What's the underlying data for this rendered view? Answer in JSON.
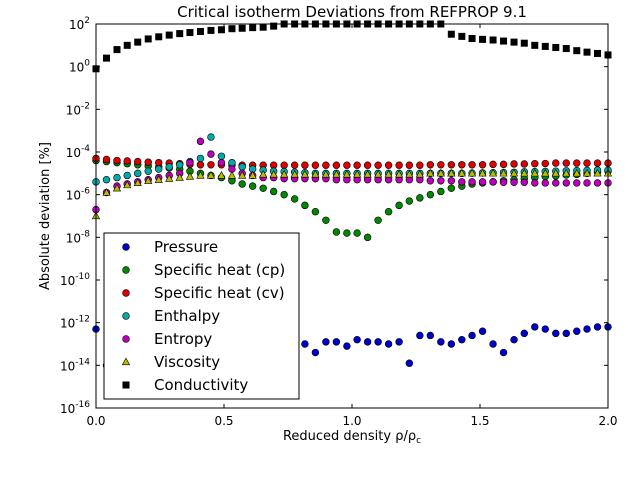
{
  "chart_data": {
    "type": "scatter",
    "title": "Critical isotherm Deviations from REFPROP 9.1",
    "xlabel": "Reduced density ρ/ρ",
    "xlabel_sub": "c",
    "ylabel": "Absolute deviation [%]",
    "xlim": [
      0,
      2
    ],
    "ylim_log10": [
      -16,
      2
    ],
    "y_scale": "log",
    "x_ticks": [
      "0.0",
      "0.5",
      "1.0",
      "1.5",
      "2.0"
    ],
    "y_ticks": [
      {
        "base": "10",
        "exp": "2"
      },
      {
        "base": "10",
        "exp": "0"
      },
      {
        "base": "10",
        "exp": "-2"
      },
      {
        "base": "10",
        "exp": "-4"
      },
      {
        "base": "10",
        "exp": "-6"
      },
      {
        "base": "10",
        "exp": "-8"
      },
      {
        "base": "10",
        "exp": "-10"
      },
      {
        "base": "10",
        "exp": "-12"
      },
      {
        "base": "10",
        "exp": "-14"
      },
      {
        "base": "10",
        "exp": "-16"
      }
    ],
    "legend_position": "lower-left",
    "x": [
      0.0,
      0.041,
      0.082,
      0.122,
      0.163,
      0.204,
      0.245,
      0.286,
      0.327,
      0.367,
      0.408,
      0.449,
      0.49,
      0.531,
      0.571,
      0.612,
      0.653,
      0.694,
      0.735,
      0.776,
      0.816,
      0.857,
      0.898,
      0.939,
      0.98,
      1.02,
      1.061,
      1.102,
      1.143,
      1.184,
      1.224,
      1.265,
      1.306,
      1.347,
      1.388,
      1.429,
      1.469,
      1.51,
      1.551,
      1.592,
      1.633,
      1.673,
      1.714,
      1.755,
      1.796,
      1.837,
      1.878,
      1.918,
      1.959,
      2.0
    ],
    "series": [
      {
        "name": "Pressure",
        "marker": "circle",
        "color": "#0000cc",
        "log10_values": [
          -12.3,
          -14.0,
          -13.5,
          -13.0,
          -12.9,
          -13.2,
          -13.5,
          -13.6,
          -13.2,
          -13.4,
          -13.6,
          -13.3,
          -13.7,
          -13.4,
          -13.5,
          -13.3,
          -13.6,
          -13.2,
          -13.4,
          -13.2,
          -13.0,
          -13.4,
          -12.9,
          -12.9,
          -13.1,
          -12.8,
          -12.9,
          -12.9,
          -13.0,
          -12.9,
          -13.9,
          -12.6,
          -12.6,
          -12.9,
          -13.0,
          -12.8,
          -12.6,
          -12.4,
          -13.0,
          -13.4,
          -12.8,
          -12.5,
          -12.2,
          -12.3,
          -12.5,
          -12.5,
          -12.4,
          -12.3,
          -12.2,
          -12.2
        ]
      },
      {
        "name": "Specific heat (cp)",
        "marker": "circle",
        "color": "#008800",
        "log10_values": [
          -4.4,
          -4.45,
          -4.5,
          -4.55,
          -4.6,
          -4.65,
          -4.7,
          -4.75,
          -4.8,
          -4.9,
          -5.0,
          -5.1,
          -5.2,
          -5.35,
          -5.5,
          -5.6,
          -5.7,
          -5.85,
          -6.0,
          -6.2,
          -6.5,
          -6.8,
          -7.2,
          -7.75,
          -7.8,
          -7.8,
          -8.0,
          -7.2,
          -6.8,
          -6.5,
          -6.3,
          -6.15,
          -6.0,
          -5.85,
          -5.7,
          -5.6,
          -5.5,
          -5.45,
          -5.4,
          -5.35,
          -5.3,
          -5.25,
          -5.2,
          -5.15,
          -5.12,
          -5.08,
          -5.05,
          -5.0,
          -4.95,
          -4.9
        ]
      },
      {
        "name": "Specific heat (cv)",
        "marker": "circle",
        "color": "#dd0000",
        "log10_values": [
          -4.3,
          -4.35,
          -4.4,
          -4.42,
          -4.45,
          -4.48,
          -4.5,
          -4.52,
          -4.55,
          -4.58,
          -4.6,
          -4.6,
          -4.6,
          -4.62,
          -4.62,
          -4.62,
          -4.62,
          -4.62,
          -4.62,
          -4.62,
          -4.62,
          -4.62,
          -4.62,
          -4.62,
          -4.62,
          -4.62,
          -4.62,
          -4.62,
          -4.62,
          -4.62,
          -4.62,
          -4.62,
          -4.6,
          -4.6,
          -4.6,
          -4.6,
          -4.6,
          -4.6,
          -4.58,
          -4.58,
          -4.56,
          -4.56,
          -4.55,
          -4.54,
          -4.52,
          -4.52,
          -4.52,
          -4.52,
          -4.52,
          -4.52
        ]
      },
      {
        "name": "Enthalpy",
        "marker": "circle",
        "color": "#00aaaa",
        "log10_values": [
          -5.4,
          -5.3,
          -5.2,
          -5.1,
          -5.0,
          -4.9,
          -4.8,
          -4.7,
          -4.6,
          -4.45,
          -4.3,
          -3.3,
          -4.2,
          -4.5,
          -4.7,
          -4.8,
          -4.85,
          -4.9,
          -4.92,
          -4.95,
          -4.97,
          -5.0,
          -5.0,
          -5.0,
          -5.0,
          -5.0,
          -5.0,
          -5.0,
          -5.0,
          -5.0,
          -5.0,
          -5.0,
          -5.0,
          -5.0,
          -5.0,
          -5.0,
          -4.99,
          -4.98,
          -4.97,
          -4.96,
          -4.95,
          -4.93,
          -4.92,
          -4.91,
          -4.9,
          -4.88,
          -4.87,
          -4.86,
          -4.85,
          -4.85
        ]
      },
      {
        "name": "Entropy",
        "marker": "circle",
        "color": "#bb00bb",
        "log10_values": [
          -6.7,
          -5.9,
          -5.6,
          -5.5,
          -5.4,
          -5.3,
          -5.2,
          -5.1,
          -5.0,
          -4.5,
          -3.5,
          -4.1,
          -4.5,
          -4.8,
          -5.0,
          -5.1,
          -5.2,
          -5.2,
          -5.25,
          -5.25,
          -5.25,
          -5.25,
          -5.25,
          -5.3,
          -5.3,
          -5.3,
          -5.3,
          -5.3,
          -5.3,
          -5.3,
          -5.3,
          -5.3,
          -5.35,
          -5.35,
          -5.35,
          -5.4,
          -5.4,
          -5.4,
          -5.4,
          -5.42,
          -5.42,
          -5.42,
          -5.45,
          -5.45,
          -5.45,
          -5.45,
          -5.45,
          -5.45,
          -5.45,
          -5.45
        ]
      },
      {
        "name": "Viscosity",
        "marker": "triangle",
        "color": "#bbbb00",
        "log10_values": [
          -7.0,
          -5.9,
          -5.7,
          -5.55,
          -5.45,
          -5.35,
          -5.3,
          -5.25,
          -5.2,
          -5.15,
          -5.1,
          -5.1,
          -5.1,
          -5.1,
          -5.1,
          -5.1,
          -5.05,
          -5.05,
          -5.05,
          -5.05,
          -5.05,
          -5.05,
          -5.05,
          -5.05,
          -5.05,
          -5.05,
          -5.05,
          -5.05,
          -5.05,
          -5.05,
          -5.05,
          -5.05,
          -5.0,
          -5.0,
          -5.0,
          -5.0,
          -5.0,
          -5.0,
          -5.0,
          -5.0,
          -5.0,
          -5.0,
          -5.0,
          -5.0,
          -5.0,
          -5.0,
          -5.0,
          -5.0,
          -5.0,
          -5.0
        ]
      },
      {
        "name": "Conductivity",
        "marker": "square",
        "color": "#000000",
        "log10_values": [
          -0.1,
          0.4,
          0.8,
          1.0,
          1.15,
          1.3,
          1.4,
          1.48,
          1.55,
          1.6,
          1.65,
          1.7,
          1.73,
          1.78,
          1.8,
          1.83,
          1.85,
          1.9,
          2.0,
          2.0,
          2.0,
          2.0,
          2.0,
          2.0,
          2.0,
          2.0,
          2.0,
          2.0,
          2.0,
          2.0,
          2.0,
          2.0,
          2.0,
          2.0,
          1.52,
          1.42,
          1.32,
          1.28,
          1.25,
          1.2,
          1.15,
          1.1,
          1.0,
          0.95,
          0.9,
          0.85,
          0.75,
          0.68,
          0.62,
          0.55
        ]
      }
    ]
  }
}
